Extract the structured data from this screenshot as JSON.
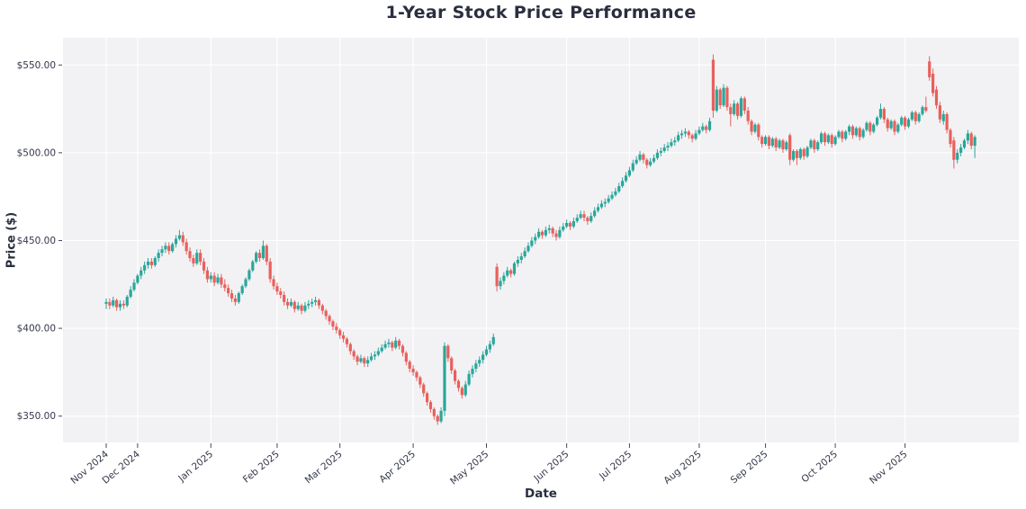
{
  "chart_data": {
    "type": "candlestick",
    "title": "1-Year Stock Price Performance",
    "xlabel": "Date",
    "ylabel": "Price ($)",
    "ylim": [
      335.0,
      565.5
    ],
    "grid": true,
    "legend": "none",
    "colors": {
      "up": "#2ba69a",
      "down": "#e8605c",
      "plot_background": "#f2f2f4",
      "figure_background": "#ffffff",
      "gridline": "#ffffff",
      "tick_label": "#33374a",
      "title_text": "#2a2e3f"
    },
    "y_ticks": {
      "values": [
        350,
        400,
        450,
        500,
        550
      ],
      "labels": [
        "$350.00",
        "$400.00",
        "$450.00",
        "$500.00",
        "$550.00"
      ]
    },
    "x_ticks": {
      "labels": [
        "Nov 2024",
        "Dec 2024",
        "Jan 2025",
        "Feb 2025",
        "Mar 2025",
        "Apr 2025",
        "May 2025",
        "Jun 2025",
        "Jul 2025",
        "Aug 2025",
        "Sep 2025",
        "Oct 2025",
        "Nov 2025"
      ],
      "indices": [
        0,
        9,
        30,
        49,
        67,
        88,
        109,
        132,
        150,
        170,
        189,
        209,
        229
      ]
    },
    "ohlc_format": [
      "open",
      "high",
      "low",
      "close"
    ],
    "ohlc": [
      [
        414,
        417,
        411,
        415
      ],
      [
        415,
        417,
        411,
        413
      ],
      [
        413,
        418,
        412,
        416
      ],
      [
        416,
        417,
        410,
        412
      ],
      [
        412,
        416,
        410,
        414
      ],
      [
        414,
        416,
        411,
        413
      ],
      [
        413,
        419,
        412,
        418
      ],
      [
        418,
        424,
        417,
        422
      ],
      [
        422,
        428,
        421,
        426
      ],
      [
        426,
        431,
        425,
        430
      ],
      [
        430,
        435,
        428,
        433
      ],
      [
        433,
        438,
        431,
        436
      ],
      [
        436,
        440,
        434,
        438
      ],
      [
        438,
        440,
        434,
        436
      ],
      [
        436,
        441,
        435,
        440
      ],
      [
        440,
        445,
        438,
        443
      ],
      [
        443,
        447,
        441,
        445
      ],
      [
        445,
        449,
        443,
        447
      ],
      [
        447,
        449,
        442,
        444
      ],
      [
        444,
        449,
        443,
        448
      ],
      [
        448,
        453,
        446,
        451
      ],
      [
        451,
        456,
        450,
        453
      ],
      [
        453,
        455,
        447,
        449
      ],
      [
        449,
        451,
        442,
        444
      ],
      [
        444,
        446,
        438,
        440
      ],
      [
        440,
        442,
        435,
        437
      ],
      [
        437,
        445,
        436,
        443
      ],
      [
        443,
        445,
        436,
        438
      ],
      [
        438,
        440,
        431,
        433
      ],
      [
        433,
        435,
        426,
        428
      ],
      [
        428,
        432,
        426,
        430
      ],
      [
        430,
        432,
        424,
        426
      ],
      [
        426,
        431,
        425,
        429
      ],
      [
        429,
        431,
        423,
        425
      ],
      [
        425,
        428,
        421,
        423
      ],
      [
        423,
        425,
        418,
        420
      ],
      [
        420,
        422,
        415,
        417
      ],
      [
        417,
        419,
        413,
        415
      ],
      [
        415,
        421,
        414,
        420
      ],
      [
        420,
        425,
        419,
        424
      ],
      [
        424,
        429,
        423,
        428
      ],
      [
        428,
        434,
        427,
        433
      ],
      [
        433,
        439,
        432,
        438
      ],
      [
        438,
        444,
        437,
        443
      ],
      [
        443,
        445,
        438,
        440
      ],
      [
        440,
        450,
        439,
        447
      ],
      [
        447,
        448,
        436,
        438
      ],
      [
        438,
        440,
        426,
        428
      ],
      [
        428,
        430,
        422,
        424
      ],
      [
        424,
        426,
        419,
        421
      ],
      [
        421,
        423,
        417,
        419
      ],
      [
        419,
        421,
        413,
        415
      ],
      [
        415,
        417,
        411,
        413
      ],
      [
        413,
        417,
        412,
        415
      ],
      [
        415,
        416,
        409,
        411
      ],
      [
        411,
        415,
        410,
        413
      ],
      [
        413,
        414,
        408,
        410
      ],
      [
        410,
        415,
        409,
        413
      ],
      [
        413,
        416,
        411,
        414
      ],
      [
        414,
        417,
        412,
        415
      ],
      [
        415,
        418,
        413,
        416
      ],
      [
        416,
        417,
        411,
        413
      ],
      [
        413,
        414,
        408,
        410
      ],
      [
        410,
        411,
        405,
        407
      ],
      [
        407,
        408,
        402,
        404
      ],
      [
        404,
        405,
        399,
        401
      ],
      [
        401,
        403,
        397,
        399
      ],
      [
        399,
        400,
        394,
        396
      ],
      [
        396,
        398,
        392,
        394
      ],
      [
        394,
        395,
        389,
        391
      ],
      [
        391,
        392,
        385,
        387
      ],
      [
        387,
        388,
        382,
        384
      ],
      [
        384,
        385,
        379,
        381
      ],
      [
        381,
        385,
        380,
        383
      ],
      [
        383,
        384,
        378,
        380
      ],
      [
        380,
        384,
        378,
        382
      ],
      [
        382,
        386,
        381,
        384
      ],
      [
        384,
        387,
        382,
        385
      ],
      [
        385,
        389,
        384,
        387
      ],
      [
        387,
        391,
        386,
        389
      ],
      [
        389,
        393,
        388,
        391
      ],
      [
        391,
        394,
        389,
        392
      ],
      [
        392,
        393,
        387,
        389
      ],
      [
        389,
        395,
        388,
        393
      ],
      [
        393,
        394,
        388,
        390
      ],
      [
        390,
        391,
        384,
        386
      ],
      [
        386,
        387,
        379,
        381
      ],
      [
        381,
        382,
        375,
        377
      ],
      [
        377,
        379,
        373,
        375
      ],
      [
        375,
        376,
        370,
        372
      ],
      [
        372,
        373,
        366,
        368
      ],
      [
        368,
        369,
        361,
        363
      ],
      [
        363,
        364,
        356,
        358
      ],
      [
        358,
        359,
        352,
        354
      ],
      [
        354,
        355,
        348,
        350
      ],
      [
        350,
        351,
        345,
        347
      ],
      [
        347,
        355,
        346,
        353
      ],
      [
        353,
        392,
        350,
        390
      ],
      [
        390,
        391,
        381,
        383
      ],
      [
        383,
        384,
        374,
        376
      ],
      [
        376,
        377,
        368,
        370
      ],
      [
        370,
        371,
        364,
        366
      ],
      [
        366,
        367,
        360,
        362
      ],
      [
        362,
        370,
        361,
        368
      ],
      [
        368,
        376,
        367,
        374
      ],
      [
        374,
        379,
        372,
        377
      ],
      [
        377,
        382,
        375,
        380
      ],
      [
        380,
        384,
        378,
        382
      ],
      [
        382,
        387,
        380,
        385
      ],
      [
        385,
        390,
        384,
        388
      ],
      [
        388,
        393,
        386,
        391
      ],
      [
        391,
        397,
        390,
        395
      ],
      [
        435,
        437,
        421,
        424
      ],
      [
        424,
        429,
        422,
        427
      ],
      [
        427,
        432,
        425,
        430
      ],
      [
        430,
        435,
        429,
        433
      ],
      [
        433,
        434,
        429,
        431
      ],
      [
        431,
        438,
        430,
        437
      ],
      [
        437,
        441,
        435,
        439
      ],
      [
        439,
        443,
        437,
        441
      ],
      [
        441,
        446,
        440,
        444
      ],
      [
        444,
        449,
        443,
        447
      ],
      [
        447,
        452,
        446,
        450
      ],
      [
        450,
        454,
        448,
        452
      ],
      [
        452,
        457,
        451,
        455
      ],
      [
        455,
        456,
        451,
        453
      ],
      [
        453,
        458,
        452,
        456
      ],
      [
        456,
        459,
        454,
        457
      ],
      [
        457,
        458,
        452,
        454
      ],
      [
        454,
        456,
        450,
        452
      ],
      [
        452,
        458,
        451,
        456
      ],
      [
        456,
        460,
        455,
        458
      ],
      [
        458,
        462,
        457,
        460
      ],
      [
        460,
        461,
        456,
        458
      ],
      [
        458,
        463,
        457,
        461
      ],
      [
        461,
        465,
        460,
        463
      ],
      [
        463,
        467,
        462,
        465
      ],
      [
        465,
        467,
        461,
        463
      ],
      [
        463,
        464,
        459,
        461
      ],
      [
        461,
        466,
        460,
        464
      ],
      [
        464,
        469,
        463,
        467
      ],
      [
        467,
        471,
        466,
        469
      ],
      [
        469,
        473,
        468,
        471
      ],
      [
        471,
        474,
        469,
        472
      ],
      [
        472,
        476,
        471,
        474
      ],
      [
        474,
        478,
        473,
        476
      ],
      [
        476,
        480,
        475,
        478
      ],
      [
        478,
        483,
        477,
        481
      ],
      [
        481,
        486,
        480,
        484
      ],
      [
        484,
        489,
        483,
        487
      ],
      [
        487,
        492,
        486,
        490
      ],
      [
        490,
        496,
        489,
        494
      ],
      [
        494,
        498,
        493,
        496
      ],
      [
        496,
        501,
        495,
        499
      ],
      [
        499,
        500,
        494,
        496
      ],
      [
        496,
        497,
        491,
        493
      ],
      [
        493,
        497,
        492,
        495
      ],
      [
        495,
        499,
        494,
        497
      ],
      [
        497,
        502,
        496,
        500
      ],
      [
        500,
        503,
        498,
        501
      ],
      [
        501,
        505,
        500,
        503
      ],
      [
        503,
        506,
        501,
        504
      ],
      [
        504,
        508,
        503,
        506
      ],
      [
        506,
        509,
        504,
        507
      ],
      [
        507,
        512,
        506,
        510
      ],
      [
        510,
        513,
        508,
        511
      ],
      [
        511,
        514,
        509,
        512
      ],
      [
        512,
        513,
        508,
        510
      ],
      [
        510,
        511,
        506,
        508
      ],
      [
        508,
        513,
        507,
        511
      ],
      [
        511,
        515,
        510,
        513
      ],
      [
        513,
        517,
        512,
        515
      ],
      [
        515,
        516,
        511,
        513
      ],
      [
        513,
        520,
        512,
        518
      ],
      [
        553,
        556,
        520,
        524
      ],
      [
        524,
        538,
        523,
        536
      ],
      [
        536,
        537,
        525,
        527
      ],
      [
        527,
        539,
        526,
        537
      ],
      [
        537,
        538,
        524,
        526
      ],
      [
        526,
        528,
        515,
        522
      ],
      [
        522,
        530,
        521,
        528
      ],
      [
        528,
        529,
        519,
        521
      ],
      [
        521,
        532,
        520,
        531
      ],
      [
        531,
        532,
        522,
        524
      ],
      [
        524,
        526,
        516,
        518
      ],
      [
        518,
        519,
        510,
        512
      ],
      [
        512,
        517,
        511,
        516
      ],
      [
        516,
        517,
        507,
        509
      ],
      [
        509,
        510,
        503,
        505
      ],
      [
        505,
        510,
        504,
        509
      ],
      [
        509,
        510,
        502,
        504
      ],
      [
        504,
        509,
        503,
        508
      ],
      [
        508,
        509,
        501,
        503
      ],
      [
        503,
        508,
        502,
        507
      ],
      [
        507,
        508,
        500,
        502
      ],
      [
        502,
        507,
        501,
        506
      ],
      [
        510,
        511,
        493,
        496
      ],
      [
        496,
        502,
        495,
        501
      ],
      [
        501,
        502,
        493,
        497
      ],
      [
        497,
        503,
        496,
        502
      ],
      [
        502,
        503,
        496,
        498
      ],
      [
        498,
        504,
        497,
        503
      ],
      [
        503,
        508,
        502,
        507
      ],
      [
        507,
        508,
        500,
        502
      ],
      [
        502,
        507,
        501,
        506
      ],
      [
        506,
        512,
        505,
        511
      ],
      [
        511,
        512,
        504,
        506
      ],
      [
        506,
        511,
        505,
        510
      ],
      [
        510,
        511,
        503,
        505
      ],
      [
        505,
        510,
        504,
        509
      ],
      [
        509,
        513,
        508,
        512
      ],
      [
        512,
        513,
        506,
        508
      ],
      [
        508,
        513,
        507,
        512
      ],
      [
        512,
        516,
        510,
        515
      ],
      [
        515,
        516,
        508,
        510
      ],
      [
        510,
        515,
        509,
        514
      ],
      [
        514,
        515,
        507,
        509
      ],
      [
        509,
        514,
        508,
        513
      ],
      [
        513,
        518,
        512,
        517
      ],
      [
        517,
        518,
        510,
        512
      ],
      [
        512,
        517,
        511,
        516
      ],
      [
        516,
        521,
        515,
        520
      ],
      [
        520,
        528,
        519,
        525
      ],
      [
        525,
        526,
        517,
        519
      ],
      [
        519,
        520,
        512,
        514
      ],
      [
        514,
        519,
        513,
        518
      ],
      [
        518,
        519,
        510,
        512
      ],
      [
        512,
        517,
        511,
        516
      ],
      [
        516,
        521,
        515,
        520
      ],
      [
        520,
        521,
        513,
        515
      ],
      [
        515,
        520,
        514,
        519
      ],
      [
        519,
        524,
        518,
        523
      ],
      [
        523,
        524,
        516,
        518
      ],
      [
        518,
        523,
        517,
        522
      ],
      [
        522,
        527,
        521,
        526
      ],
      [
        526,
        532,
        523,
        524
      ],
      [
        552,
        555,
        541,
        543
      ],
      [
        545,
        548,
        532,
        534
      ],
      [
        536,
        538,
        525,
        527
      ],
      [
        527,
        529,
        517,
        519
      ],
      [
        518,
        524,
        516,
        522
      ],
      [
        522,
        523,
        511,
        513
      ],
      [
        513,
        514,
        503,
        505
      ],
      [
        507,
        509,
        491,
        496
      ],
      [
        496,
        502,
        494,
        500
      ],
      [
        500,
        505,
        498,
        503
      ],
      [
        503,
        508,
        502,
        507
      ],
      [
        507,
        513,
        505,
        511
      ],
      [
        511,
        512,
        502,
        504
      ],
      [
        504,
        510,
        497,
        509
      ]
    ]
  }
}
